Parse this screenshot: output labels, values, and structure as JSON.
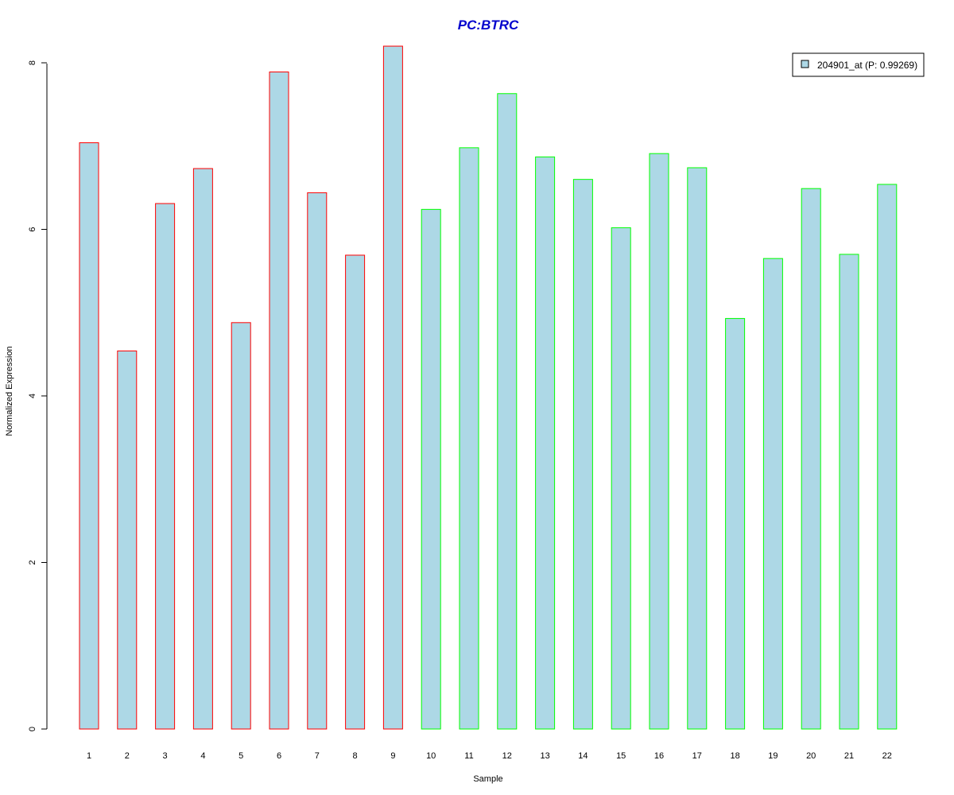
{
  "chart_data": {
    "type": "bar",
    "title": "PC:BTRC",
    "xlabel": "Sample",
    "ylabel": "Normalized Expression",
    "categories": [
      "1",
      "2",
      "3",
      "4",
      "5",
      "6",
      "7",
      "8",
      "9",
      "10",
      "11",
      "12",
      "13",
      "14",
      "15",
      "16",
      "17",
      "18",
      "19",
      "20",
      "21",
      "22"
    ],
    "values": [
      7.04,
      4.54,
      6.31,
      6.73,
      4.88,
      7.89,
      6.44,
      5.69,
      8.2,
      6.24,
      6.98,
      7.63,
      6.87,
      6.6,
      6.02,
      6.91,
      6.74,
      4.93,
      5.65,
      6.49,
      5.7,
      6.54
    ],
    "group_border_colors": [
      "#ff0000",
      "#ff0000",
      "#ff0000",
      "#ff0000",
      "#ff0000",
      "#ff0000",
      "#ff0000",
      "#ff0000",
      "#ff0000",
      "#00ff00",
      "#00ff00",
      "#00ff00",
      "#00ff00",
      "#00ff00",
      "#00ff00",
      "#00ff00",
      "#00ff00",
      "#00ff00",
      "#00ff00",
      "#00ff00",
      "#00ff00",
      "#00ff00"
    ],
    "bar_fill_color": "#add8e6",
    "title_color": "#0000cd",
    "ylim": [
      0,
      8.2
    ],
    "yticks": [
      0,
      2,
      4,
      6,
      8
    ],
    "grid": false,
    "legend": {
      "label": "204901_at (P: 0.99269)",
      "placement": "top-right"
    }
  }
}
